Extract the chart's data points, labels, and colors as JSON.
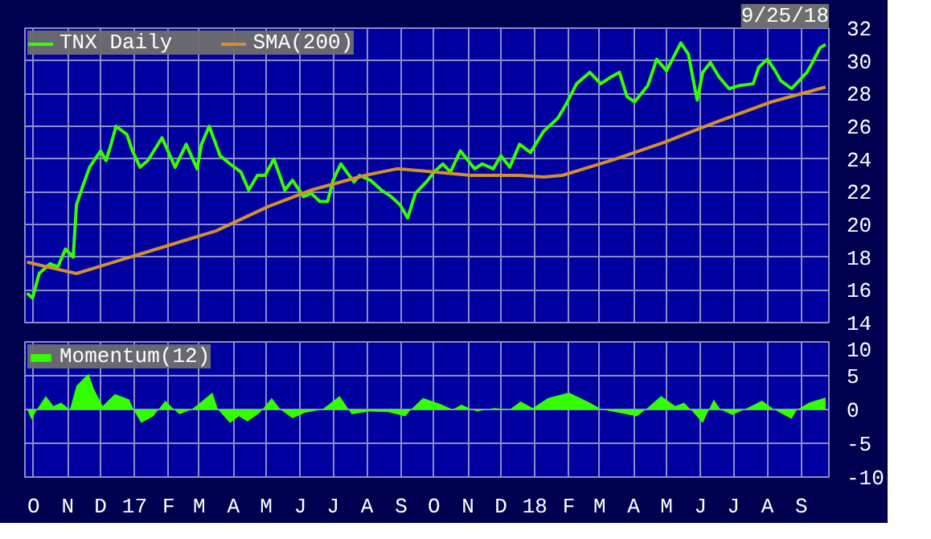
{
  "chart_data": [
    {
      "type": "line",
      "annotations": [
        "9/25/18"
      ],
      "series": [
        {
          "name": "TNX Daily",
          "color": "#33ff00",
          "x": [
            "2016-09-25",
            "2016-09-30",
            "2016-10-06",
            "2016-10-16",
            "2016-10-23",
            "2016-10-30",
            "2016-11-06",
            "2016-11-09",
            "2016-11-14",
            "2016-11-21",
            "2016-12-01",
            "2016-12-06",
            "2016-12-11",
            "2016-12-15",
            "2016-12-25",
            "2016-12-30",
            "2017-01-06",
            "2017-01-13",
            "2017-01-26",
            "2017-02-07",
            "2017-02-17",
            "2017-02-27",
            "2017-03-03",
            "2017-03-10",
            "2017-03-20",
            "2017-03-29",
            "2017-04-08",
            "2017-04-15",
            "2017-04-23",
            "2017-04-30",
            "2017-05-08",
            "2017-05-18",
            "2017-05-25",
            "2017-06-04",
            "2017-06-11",
            "2017-06-19",
            "2017-06-26",
            "2017-07-01",
            "2017-07-08",
            "2017-07-20",
            "2017-07-25",
            "2017-08-04",
            "2017-08-14",
            "2017-08-23",
            "2017-08-31",
            "2017-09-07",
            "2017-09-14",
            "2017-09-24",
            "2017-10-01",
            "2017-10-09",
            "2017-10-16",
            "2017-10-25",
            "2017-11-07",
            "2017-11-14",
            "2017-11-24",
            "2017-12-01",
            "2017-12-09",
            "2017-12-18",
            "2017-12-28",
            "2018-01-09",
            "2018-01-22",
            "2018-01-29",
            "2018-02-08",
            "2018-02-20",
            "2018-03-02",
            "2018-03-11",
            "2018-03-19",
            "2018-03-26",
            "2018-04-02",
            "2018-04-14",
            "2018-04-22",
            "2018-05-01",
            "2018-05-14",
            "2018-05-21",
            "2018-05-26",
            "2018-05-29",
            "2018-06-03",
            "2018-06-10",
            "2018-06-18",
            "2018-06-27",
            "2018-07-07",
            "2018-07-19",
            "2018-07-24",
            "2018-08-01",
            "2018-08-08",
            "2018-08-13",
            "2018-08-23",
            "2018-08-30",
            "2018-09-06",
            "2018-09-11",
            "2018-09-18",
            "2018-09-23"
          ],
          "values": [
            15.8,
            15.5,
            17.0,
            17.6,
            17.4,
            18.5,
            18.0,
            21.2,
            22.2,
            23.5,
            24.5,
            23.9,
            25.0,
            26.0,
            25.5,
            24.5,
            23.5,
            23.9,
            25.3,
            23.5,
            24.9,
            23.4,
            24.9,
            26.0,
            24.2,
            23.7,
            23.2,
            22.1,
            23.0,
            23.0,
            24.0,
            22.1,
            22.7,
            21.7,
            21.9,
            21.4,
            21.4,
            22.7,
            23.7,
            22.6,
            23.0,
            22.7,
            22.1,
            21.7,
            21.2,
            20.4,
            21.9,
            22.6,
            23.2,
            23.7,
            23.2,
            24.5,
            23.4,
            23.7,
            23.4,
            24.2,
            23.5,
            24.9,
            24.4,
            25.7,
            26.5,
            27.3,
            28.6,
            29.3,
            28.6,
            29.0,
            29.3,
            27.8,
            27.5,
            28.5,
            30.1,
            29.4,
            31.1,
            30.4,
            28.6,
            27.6,
            29.3,
            29.9,
            29.0,
            28.3,
            28.5,
            28.6,
            29.6,
            30.1,
            29.4,
            28.8,
            28.3,
            28.8,
            29.3,
            29.9,
            30.8,
            31.0
          ]
        },
        {
          "name": "SMA(200)",
          "color": "#d4902a",
          "x": [
            "2016-09-25",
            "2016-10-20",
            "2016-11-09",
            "2016-12-08",
            "2017-01-26",
            "2017-03-16",
            "2017-05-03",
            "2017-06-11",
            "2017-07-30",
            "2017-08-28",
            "2017-09-17",
            "2017-11-04",
            "2017-12-18",
            "2018-01-09",
            "2018-01-26",
            "2018-03-11",
            "2018-04-28",
            "2018-06-17",
            "2018-08-05",
            "2018-09-23"
          ],
          "values": [
            17.7,
            17.3,
            17.0,
            17.6,
            18.6,
            19.6,
            21.1,
            22.1,
            23.0,
            23.4,
            23.3,
            23.0,
            23.0,
            22.9,
            23.0,
            23.9,
            25.0,
            26.3,
            27.5,
            28.4
          ]
        }
      ],
      "xlim": [
        "2016-09-23",
        "2018-09-26"
      ],
      "xticks": [
        {
          "value": "2016-10-01",
          "label": null
        },
        {
          "value": "2016-11-01",
          "label": null
        },
        {
          "value": "2016-12-01",
          "label": null
        },
        {
          "value": "2017-01-01",
          "label": null
        },
        {
          "value": "2017-02-01",
          "label": null
        },
        {
          "value": "2017-03-01",
          "label": null
        },
        {
          "value": "2017-04-01",
          "label": null
        },
        {
          "value": "2017-05-01",
          "label": null
        },
        {
          "value": "2017-06-01",
          "label": null
        },
        {
          "value": "2017-07-01",
          "label": null
        },
        {
          "value": "2017-08-01",
          "label": null
        },
        {
          "value": "2017-09-01",
          "label": null
        },
        {
          "value": "2017-10-01",
          "label": null
        },
        {
          "value": "2017-11-01",
          "label": null
        },
        {
          "value": "2017-12-01",
          "label": null
        },
        {
          "value": "2018-01-01",
          "label": null
        },
        {
          "value": "2018-02-01",
          "label": null
        },
        {
          "value": "2018-03-01",
          "label": null
        },
        {
          "value": "2018-04-01",
          "label": null
        },
        {
          "value": "2018-05-01",
          "label": null
        },
        {
          "value": "2018-06-01",
          "label": null
        },
        {
          "value": "2018-07-01",
          "label": null
        },
        {
          "value": "2018-08-01",
          "label": null
        },
        {
          "value": "2018-09-01",
          "label": null
        }
      ],
      "ylim": [
        14,
        32
      ],
      "yticks": [
        14,
        16,
        18,
        20,
        22,
        24,
        26,
        28,
        30,
        32
      ],
      "grid": true,
      "legend": "top left",
      "tick_labels": "y"
    },
    {
      "type": "area",
      "series": [
        {
          "name": "Momentum(12)",
          "color": "#33ff00",
          "x": [
            "2016-09-25",
            "2016-09-29",
            "2016-10-04",
            "2016-10-12",
            "2016-10-19",
            "2016-10-26",
            "2016-11-03",
            "2016-11-09",
            "2016-11-20",
            "2016-11-25",
            "2016-12-03",
            "2016-12-14",
            "2016-12-27",
            "2016-12-31",
            "2017-01-07",
            "2017-01-18",
            "2017-01-29",
            "2017-02-06",
            "2017-02-11",
            "2017-02-22",
            "2017-03-13",
            "2017-03-18",
            "2017-03-29",
            "2017-04-06",
            "2017-04-14",
            "2017-04-25",
            "2017-05-06",
            "2017-05-14",
            "2017-05-25",
            "2017-06-05",
            "2017-06-21",
            "2017-07-07",
            "2017-07-18",
            "2017-08-03",
            "2017-08-20",
            "2017-09-05",
            "2017-09-10",
            "2017-09-21",
            "2017-10-07",
            "2017-10-18",
            "2017-10-26",
            "2017-11-09",
            "2017-11-25",
            "2017-12-09",
            "2017-12-19",
            "2017-12-30",
            "2018-01-13",
            "2018-02-01",
            "2018-02-20",
            "2018-03-03",
            "2018-03-19",
            "2018-04-04",
            "2018-04-12",
            "2018-04-26",
            "2018-05-09",
            "2018-05-17",
            "2018-05-23",
            "2018-06-03",
            "2018-06-13",
            "2018-06-19",
            "2018-06-30",
            "2018-07-11",
            "2018-07-27",
            "2018-08-07",
            "2018-08-23",
            "2018-08-28",
            "2018-09-08",
            "2018-09-23"
          ],
          "values": [
            0,
            -1.5,
            0,
            2,
            0.5,
            1,
            0,
            3.5,
            5.3,
            3,
            0.5,
            2.3,
            1.5,
            0,
            -2,
            -1,
            1.3,
            0,
            -0.7,
            0,
            2.5,
            0,
            -2,
            -1,
            -1.8,
            -0.5,
            1.7,
            0,
            -1.3,
            -0.5,
            0,
            2,
            -0.7,
            -0.3,
            -0.4,
            -1,
            0,
            1.7,
            0.8,
            0,
            0.7,
            -0.3,
            0.2,
            0,
            1.2,
            0.2,
            1.7,
            2.5,
            1,
            0,
            -0.5,
            -1,
            0,
            2,
            0.5,
            1,
            0,
            -2,
            1.5,
            0,
            -0.8,
            0,
            1.3,
            0,
            -1.4,
            0,
            1,
            1.8
          ]
        }
      ],
      "xlim": [
        "2016-09-23",
        "2018-09-26"
      ],
      "xticks": [
        {
          "value": "2016-10-01",
          "label": "O"
        },
        {
          "value": "2016-11-01",
          "label": "N"
        },
        {
          "value": "2016-12-01",
          "label": "D"
        },
        {
          "value": "2017-01-01",
          "label": "17"
        },
        {
          "value": "2017-02-01",
          "label": "F"
        },
        {
          "value": "2017-03-01",
          "label": "M"
        },
        {
          "value": "2017-04-01",
          "label": "A"
        },
        {
          "value": "2017-05-01",
          "label": "M"
        },
        {
          "value": "2017-06-01",
          "label": "J"
        },
        {
          "value": "2017-07-01",
          "label": "J"
        },
        {
          "value": "2017-08-01",
          "label": "A"
        },
        {
          "value": "2017-09-01",
          "label": "S"
        },
        {
          "value": "2017-10-01",
          "label": "O"
        },
        {
          "value": "2017-11-01",
          "label": "N"
        },
        {
          "value": "2017-12-01",
          "label": "D"
        },
        {
          "value": "2018-01-01",
          "label": "18"
        },
        {
          "value": "2018-02-01",
          "label": "F"
        },
        {
          "value": "2018-03-01",
          "label": "M"
        },
        {
          "value": "2018-04-01",
          "label": "A"
        },
        {
          "value": "2018-05-01",
          "label": "M"
        },
        {
          "value": "2018-06-01",
          "label": "J"
        },
        {
          "value": "2018-07-01",
          "label": "J"
        },
        {
          "value": "2018-08-01",
          "label": "A"
        },
        {
          "value": "2018-09-01",
          "label": "S"
        }
      ],
      "ylim": [
        -10,
        10
      ],
      "yticks": [
        -10,
        -5,
        0,
        5,
        10
      ],
      "grid": true,
      "legend": "top left"
    }
  ]
}
